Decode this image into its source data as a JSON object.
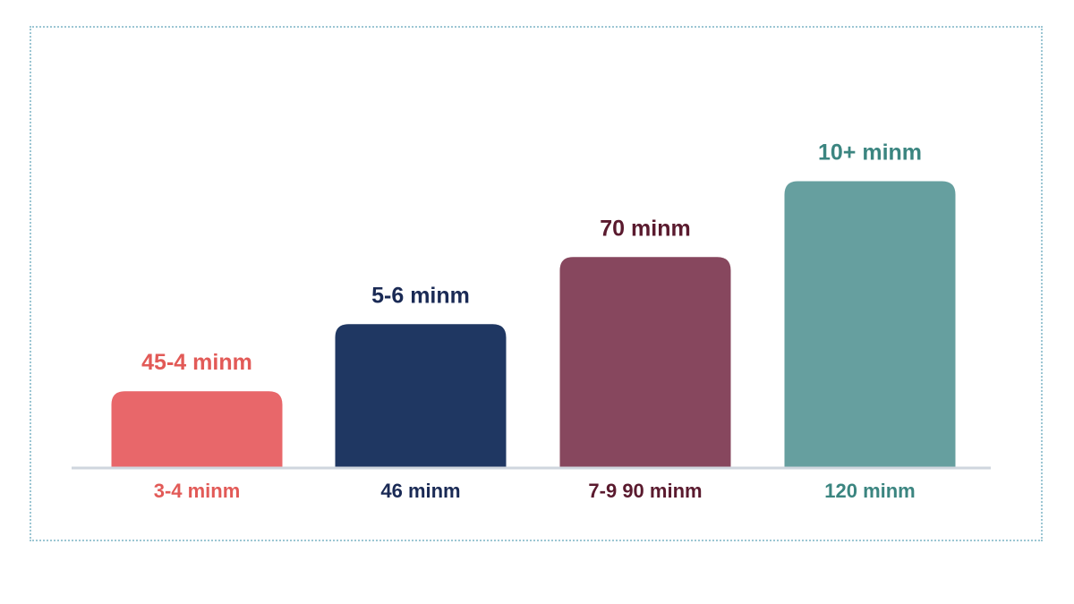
{
  "chart_data": {
    "type": "bar",
    "title": "",
    "xlabel": "",
    "ylabel": "",
    "ylim": [
      0,
      10
    ],
    "grid": false,
    "categories": [
      "3-4 minm",
      "46 minm",
      "7-9 90 minm",
      "120 minm"
    ],
    "values": [
      2.6,
      4.9,
      7.2,
      9.8
    ],
    "bar_labels": [
      "45-4 minm",
      "5-6 minm",
      "70 minm",
      "10+ minm"
    ],
    "colors": [
      "#e8676a",
      "#1f3762",
      "#87475e",
      "#669f9f"
    ],
    "label_colors": [
      "#e25a57",
      "#1a2a55",
      "#5a1a2e",
      "#3b8580"
    ]
  }
}
